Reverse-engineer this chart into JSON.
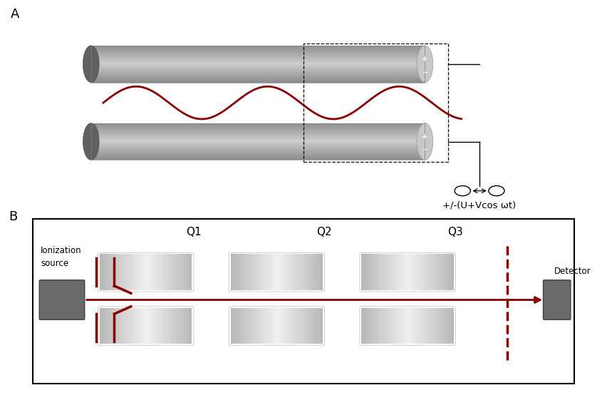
{
  "bg_color": "#ffffff",
  "label_A": "A",
  "label_B": "B",
  "rod_color_body": "#a0a0a0",
  "rod_color_dark": "#707070",
  "rod_color_light": "#c8c8c8",
  "wave_color": "#8b0000",
  "arrow_color": "#000000",
  "dashed_color": "#000000",
  "voltage_text": "+/-(U+Vcos ωt)",
  "q_labels": [
    "Q1",
    "Q2",
    "Q3"
  ],
  "ionization_text": "Ionization\nsource",
  "detector_text": "Detector",
  "box_color": "#696969",
  "red_dark": "#8b0000"
}
